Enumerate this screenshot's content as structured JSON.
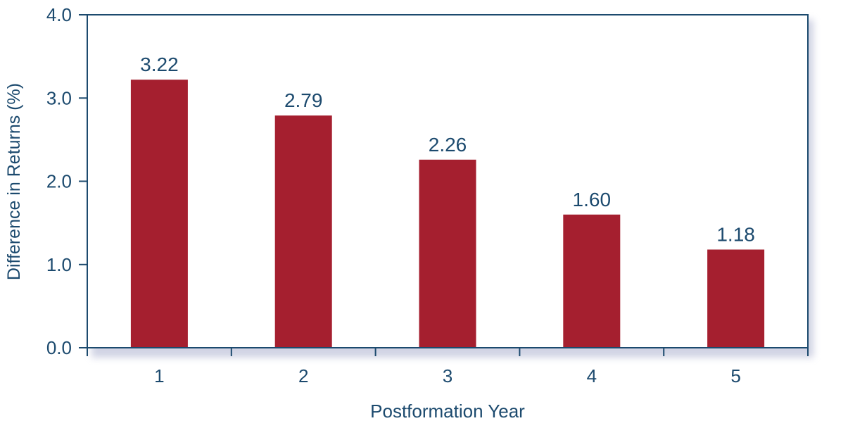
{
  "chart_data": {
    "type": "bar",
    "categories": [
      "1",
      "2",
      "3",
      "4",
      "5"
    ],
    "values": [
      3.22,
      2.79,
      2.26,
      1.6,
      1.18
    ],
    "value_labels": [
      "3.22",
      "2.79",
      "2.26",
      "1.60",
      "1.18"
    ],
    "xlabel": "Postformation Year",
    "ylabel": "Difference in Returns (%)",
    "ylim": [
      0,
      4.0
    ],
    "yticks": [
      0.0,
      1.0,
      2.0,
      3.0,
      4.0
    ],
    "ytick_labels": [
      "0.0",
      "1.0",
      "2.0",
      "3.0",
      "4.0"
    ],
    "grid": false,
    "legend": "none"
  },
  "colors": {
    "bar": "#A51F2F",
    "axis": "#1C4A6E",
    "text": "#1C4A6E",
    "shadow": "#C9CCE0"
  }
}
